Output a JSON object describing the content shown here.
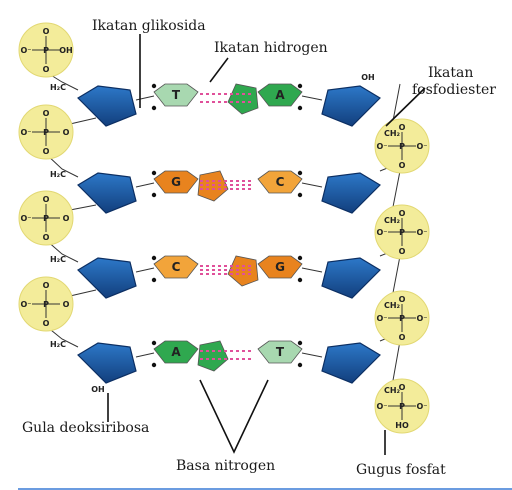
{
  "labels": {
    "glycosidic_bond": "Ikatan glikosida",
    "hydrogen_bond": "Ikatan hidrogen",
    "phosphodiester_1": "Ikatan",
    "phosphodiester_2": "fosfodiester",
    "deoxyribose": "Gula deoksiribosa",
    "nitrogen_base": "Basa nitrogen",
    "phosphate_group": "Gugus fosfat"
  },
  "chem": {
    "P": "P",
    "O": "O",
    "O_minus": "O⁻",
    "OH": "OH",
    "HO": "HO",
    "CH2_left": "H₂C",
    "CH2_right": "CH₂"
  },
  "pairs": [
    {
      "left": "T",
      "right": "A",
      "left_color": "#a8d8b0",
      "right_color": "#2fa84f"
    },
    {
      "left": "G",
      "right": "C",
      "left_color": "#e8831e",
      "right_color": "#f2a43a"
    },
    {
      "left": "C",
      "right": "G",
      "left_color": "#f2a43a",
      "right_color": "#e8831e"
    },
    {
      "left": "A",
      "right": "T",
      "left_color": "#2fa84f",
      "right_color": "#a8d8b0"
    }
  ],
  "colors": {
    "sugar": "#1d5fae",
    "phosphate_halo": "#f3ec9a",
    "hbond": "#e0509a",
    "bottom_rule": "#3a7bd5"
  }
}
